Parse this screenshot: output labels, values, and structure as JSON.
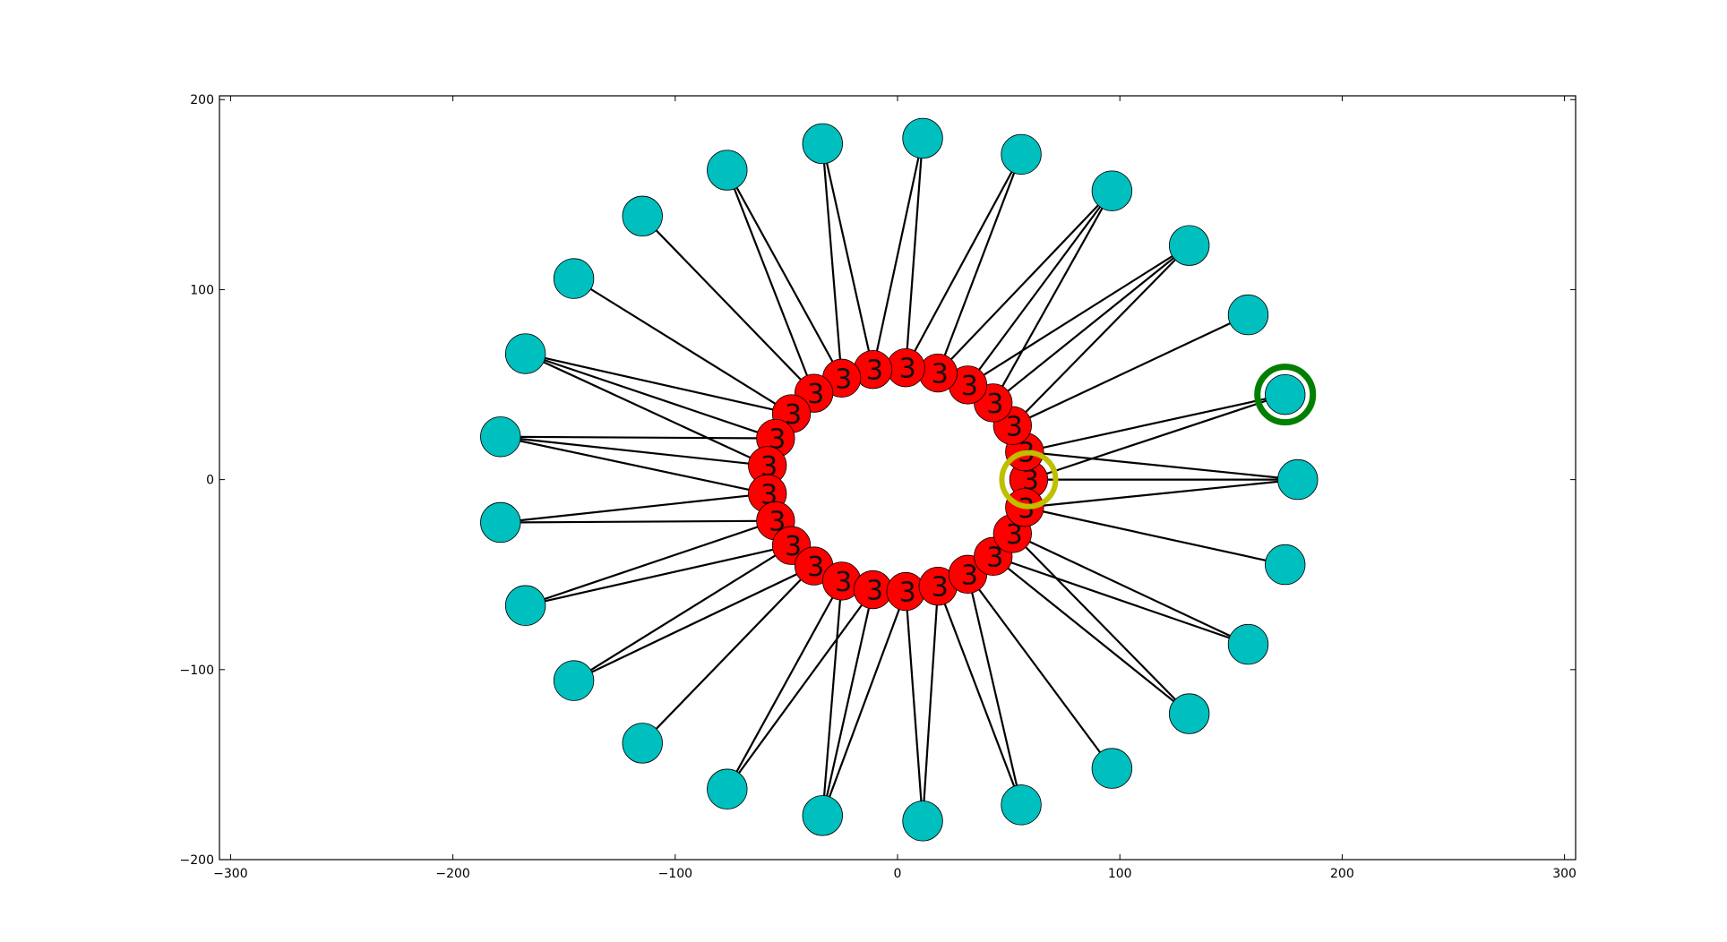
{
  "chart_data": {
    "type": "scatter",
    "title": "",
    "xlabel": "",
    "ylabel": "",
    "xlim": [
      -305,
      305
    ],
    "ylim": [
      -200,
      202
    ],
    "x_ticks": [
      -300,
      -200,
      -100,
      0,
      100,
      200,
      300
    ],
    "y_ticks": [
      -200,
      -100,
      0,
      100,
      200
    ],
    "grid": false,
    "colors": {
      "inner_fill": "#ff0000",
      "outer_fill": "#00bfbf",
      "arrow": "#000000",
      "highlight_inner_ring": "#bfbf00",
      "highlight_outer_ring": "#007f00"
    },
    "inner_label": "3",
    "inner_ring": {
      "radius": 59,
      "center": [
        0,
        0
      ],
      "count": 25
    },
    "outer_ring": {
      "radius": 180,
      "center": [
        0,
        0
      ],
      "count": 25
    },
    "highlight": {
      "inner_index": 0,
      "outer_index": 1
    }
  }
}
